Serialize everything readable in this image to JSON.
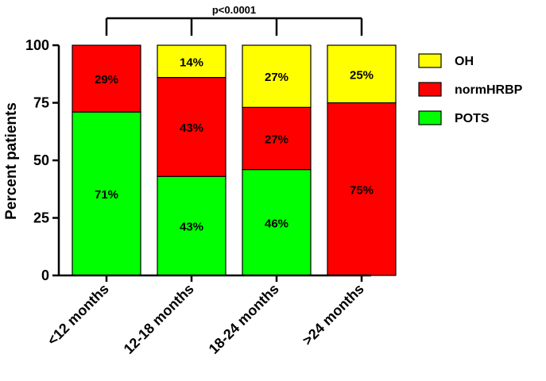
{
  "chart_data": {
    "type": "bar",
    "stacked": true,
    "normalized_to": 100,
    "title": "",
    "xlabel": "",
    "ylabel": "Percent patients",
    "ylim": [
      0,
      100
    ],
    "yticks": [
      0,
      25,
      50,
      75,
      100
    ],
    "ytick_labels": [
      "0",
      "25",
      "50",
      "75",
      "100"
    ],
    "categories": [
      "<12 months",
      "12-18 months",
      "18-24 months",
      ">24 months"
    ],
    "series": [
      {
        "name": "POTS",
        "color": "#00ff00",
        "values": [
          71,
          43,
          46,
          0
        ],
        "labels": [
          "71%",
          "43%",
          "46%",
          ""
        ]
      },
      {
        "name": "normHRBP",
        "color": "#ff0000",
        "values": [
          29,
          43,
          27,
          75
        ],
        "labels": [
          "29%",
          "43%",
          "27%",
          "75%"
        ]
      },
      {
        "name": "OH",
        "color": "#ffff00",
        "values": [
          0,
          14,
          27,
          25
        ],
        "labels": [
          "",
          "14%",
          "27%",
          "25%"
        ]
      }
    ],
    "legend": {
      "placement": "right",
      "order": [
        "OH",
        "normHRBP",
        "POTS"
      ]
    },
    "grid": false,
    "annotation": {
      "text": "p<0.0001",
      "type": "significance-bracket",
      "spans": [
        "<12 months",
        "12-18 months",
        "18-24 months",
        ">24 months"
      ]
    }
  }
}
